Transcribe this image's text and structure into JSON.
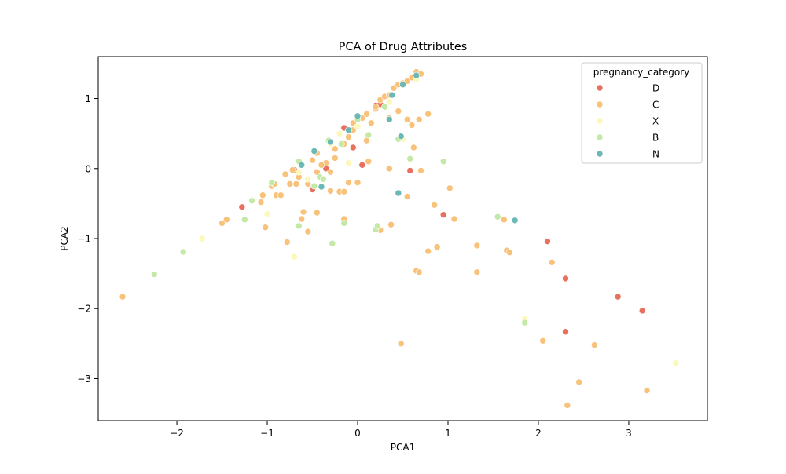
{
  "chart_data": {
    "type": "scatter",
    "title": "PCA of Drug Attributes",
    "xlabel": "PCA1",
    "ylabel": "PCA2",
    "xlim": [
      -2.87,
      3.87
    ],
    "ylim": [
      -3.6,
      1.6
    ],
    "xticks": [
      -2,
      -1,
      0,
      1,
      2,
      3
    ],
    "yticks": [
      -3,
      -2,
      -1,
      0,
      1
    ],
    "xtick_labels": [
      "−2",
      "−1",
      "0",
      "1",
      "2",
      "3"
    ],
    "ytick_labels": [
      "−3",
      "−2",
      "−1",
      "0",
      "1"
    ],
    "grid": false,
    "legend": {
      "title": "pregnancy_category",
      "position": "top-right",
      "entries": [
        {
          "label": "D",
          "color": "#e8705e"
        },
        {
          "label": "C",
          "color": "#f9c27a"
        },
        {
          "label": "X",
          "color": "#fcf8b9"
        },
        {
          "label": "B",
          "color": "#c4e8a6"
        },
        {
          "label": "N",
          "color": "#6cb8b7"
        }
      ]
    },
    "series": [
      {
        "name": "D",
        "color": "#e8705e",
        "x": [
          -1.28,
          0.2,
          -0.15,
          -0.2,
          0.05,
          -0.5,
          -0.05,
          -0.35,
          0.58,
          0.95,
          2.1,
          2.3,
          2.3,
          2.88,
          3.15,
          -0.7,
          0.25
        ],
        "y": [
          -0.55,
          0.9,
          0.58,
          0.5,
          0.05,
          -0.3,
          0.3,
          0.0,
          -0.03,
          -0.66,
          -1.04,
          -1.57,
          -2.33,
          -1.83,
          -2.03,
          -0.02,
          0.92
        ]
      },
      {
        "name": "C",
        "color": "#f9c27a",
        "x": [
          -2.6,
          -1.5,
          -1.45,
          -1.05,
          -1.02,
          -0.95,
          -0.9,
          -0.8,
          -0.75,
          -0.65,
          -0.6,
          -0.55,
          -0.5,
          -0.45,
          -0.4,
          -0.35,
          -0.3,
          -0.25,
          -0.2,
          -0.15,
          -0.1,
          -0.05,
          0.0,
          0.05,
          0.1,
          0.15,
          0.2,
          0.25,
          0.3,
          0.35,
          0.4,
          0.45,
          0.5,
          0.55,
          0.6,
          0.65,
          0.7,
          -0.45,
          -0.25,
          -0.15,
          -0.05,
          0.1,
          0.2,
          0.35,
          0.45,
          0.55,
          0.6,
          0.68,
          0.78,
          0.62,
          0.7,
          0.55,
          0.35,
          1.02,
          0.85,
          -1.07,
          -0.62,
          -0.15,
          0.37,
          0.78,
          0.88,
          1.07,
          1.32,
          1.32,
          1.62,
          1.65,
          1.68,
          2.15,
          2.05,
          2.45,
          2.32,
          2.62,
          3.2,
          0.48,
          0.65,
          0.68,
          -0.78,
          -0.55,
          -0.45,
          -0.85,
          -0.92,
          -0.68,
          -0.72,
          0.25,
          -0.1,
          0.0,
          0.12,
          -0.3,
          -0.4
        ],
        "y": [
          -1.83,
          -0.78,
          -0.73,
          -0.38,
          -0.84,
          -0.25,
          -0.38,
          -0.08,
          -0.22,
          -0.12,
          -0.62,
          -0.9,
          0.12,
          -0.63,
          0.05,
          0.08,
          -0.05,
          0.15,
          -0.33,
          -0.33,
          0.45,
          0.65,
          0.72,
          0.72,
          0.78,
          0.65,
          0.85,
          0.98,
          1.03,
          1.05,
          1.15,
          1.2,
          1.22,
          1.25,
          1.3,
          1.38,
          1.35,
          0.22,
          0.28,
          0.35,
          0.55,
          0.4,
          0.88,
          0.72,
          0.82,
          0.7,
          0.62,
          0.7,
          0.78,
          0.3,
          -0.03,
          -0.4,
          0.0,
          -0.28,
          -0.52,
          -0.48,
          -0.72,
          -0.72,
          -0.8,
          -1.18,
          -1.12,
          -0.72,
          -1.1,
          -1.48,
          -0.73,
          -1.17,
          -1.2,
          -1.34,
          -2.46,
          -3.05,
          -3.38,
          -2.52,
          -3.17,
          -2.5,
          -1.46,
          -1.48,
          -1.05,
          -0.22,
          -0.05,
          -0.38,
          -0.22,
          -0.22,
          -0.02,
          -0.88,
          -0.2,
          -0.2,
          0.1,
          -0.32,
          0.05
        ]
      },
      {
        "name": "X",
        "color": "#fcf8b9",
        "x": [
          -1.72,
          -1.0,
          -0.7,
          -0.65,
          -0.3,
          -0.2,
          0.35,
          0.5,
          0.65,
          3.52,
          1.85,
          -0.55,
          -0.1,
          0.0
        ],
        "y": [
          -1.0,
          -0.65,
          -1.26,
          -0.05,
          0.35,
          0.5,
          0.95,
          0.42,
          1.28,
          -2.78,
          -2.15,
          -0.15,
          0.08,
          0.6
        ],
        "stroke": "#f1e9a4"
      },
      {
        "name": "B",
        "color": "#c4e8a6",
        "x": [
          -2.25,
          -1.93,
          -1.25,
          -1.17,
          -0.95,
          -0.65,
          -0.48,
          -0.42,
          -0.38,
          -0.32,
          -0.28,
          -0.18,
          0.12,
          0.2,
          0.22,
          0.3,
          0.45,
          0.58,
          0.95,
          1.55,
          1.85,
          -0.15,
          0.0,
          -0.65
        ],
        "y": [
          -1.51,
          -1.19,
          -0.73,
          -0.46,
          -0.2,
          0.1,
          -0.25,
          -0.12,
          -0.15,
          0.4,
          -1.07,
          0.35,
          0.48,
          -0.87,
          -0.82,
          0.88,
          0.42,
          0.14,
          0.1,
          -0.69,
          -2.2,
          -0.78,
          0.7,
          -0.82
        ]
      },
      {
        "name": "N",
        "color": "#6cb8b7",
        "x": [
          -0.62,
          -0.48,
          -0.4,
          -0.3,
          0.0,
          0.35,
          0.38,
          0.45,
          0.48,
          0.5,
          0.65,
          1.74,
          -0.1
        ],
        "y": [
          0.05,
          0.25,
          -0.26,
          0.38,
          0.75,
          0.7,
          1.05,
          -0.35,
          0.46,
          1.2,
          1.33,
          -0.74,
          0.55
        ]
      }
    ]
  }
}
